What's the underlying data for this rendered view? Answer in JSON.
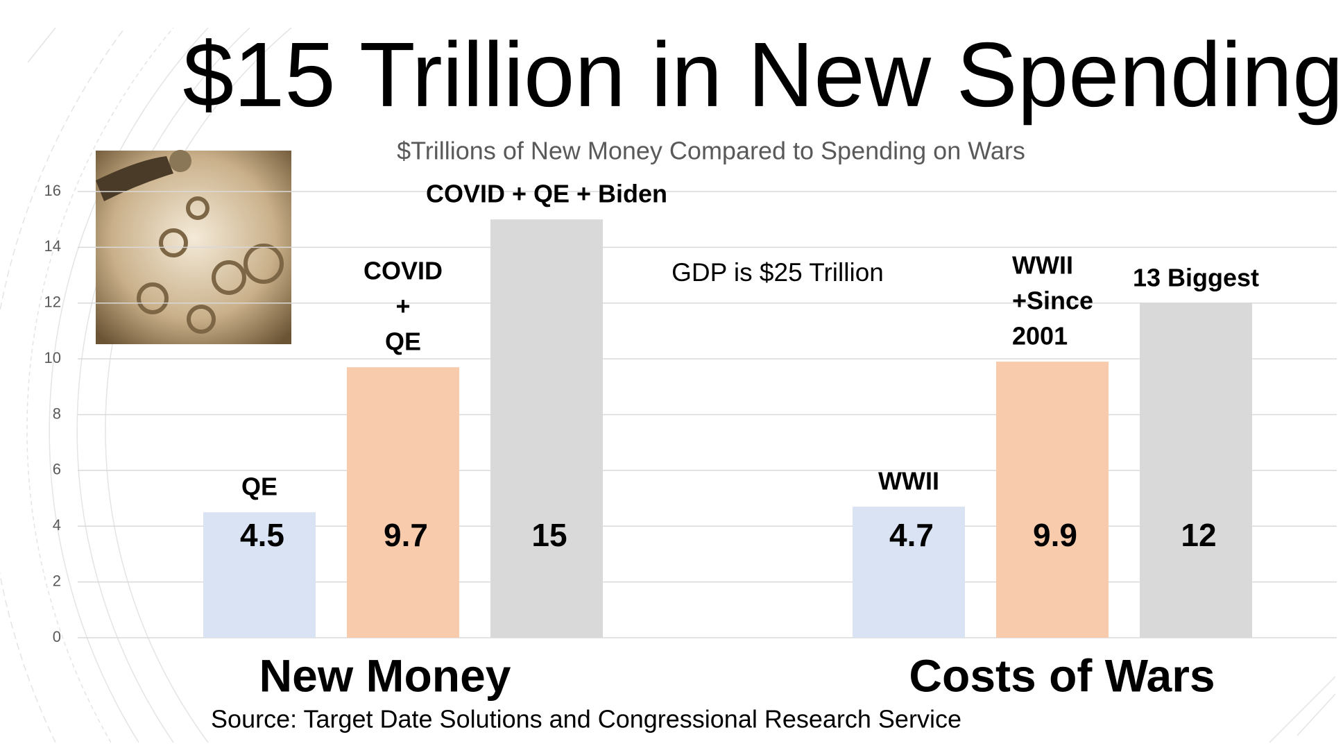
{
  "chart_data": {
    "type": "bar",
    "title": "$15 Trillion in New Spending",
    "subtitle": "$Trillions of New Money Compared to Spending on Wars",
    "annotation": "GDP is $25 Trillion",
    "source": "Source: Target Date Solutions and Congressional Research Service",
    "categories": [
      "New Money",
      "Costs of Wars"
    ],
    "series": [
      {
        "color": "#dae3f3",
        "values": [
          4.5,
          4.7
        ],
        "labels": [
          [
            "QE"
          ],
          [
            "WWII"
          ]
        ]
      },
      {
        "color": "#f8cbad",
        "values": [
          9.7,
          9.9
        ],
        "labels": [
          [
            "COVID",
            "+",
            "QE"
          ],
          [
            "WWII",
            "+Since",
            "2001"
          ]
        ]
      },
      {
        "color": "#d9d9d9",
        "values": [
          15,
          12
        ],
        "labels": [
          [
            "COVID + QE + Biden"
          ],
          [
            "13 Biggest"
          ]
        ]
      }
    ],
    "ylim": [
      0,
      16
    ],
    "yticks": [
      0,
      2,
      4,
      6,
      8,
      10,
      12,
      14,
      16
    ],
    "grid": true
  }
}
